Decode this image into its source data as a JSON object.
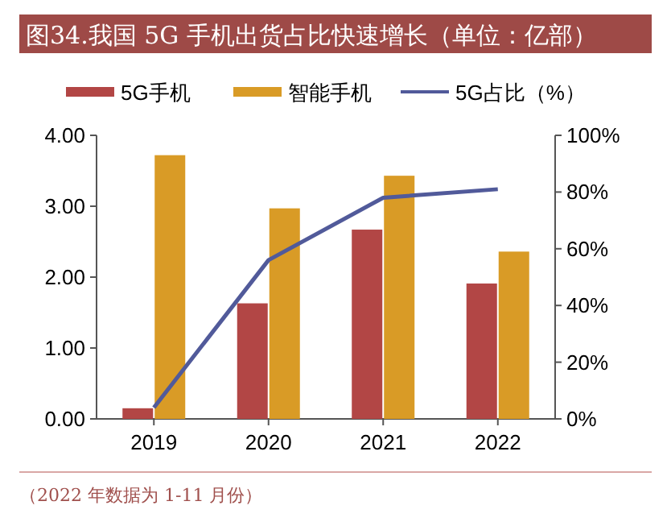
{
  "chart_data": {
    "type": "bar",
    "title": "图34.我国 5G 手机出货占比快速增长（单位：亿部）",
    "categories": [
      "2019",
      "2020",
      "2021",
      "2022"
    ],
    "series": [
      {
        "name": "5G手机",
        "color": "#b24645",
        "values": [
          0.15,
          1.63,
          2.67,
          1.91
        ]
      },
      {
        "name": "智能手机",
        "color": "#d99b26",
        "values": [
          3.72,
          2.97,
          3.43,
          2.36
        ]
      },
      {
        "name": "5G占比（%）",
        "type": "line",
        "axis": "y2",
        "color": "#515a9a",
        "values": [
          4,
          56,
          78,
          81
        ]
      }
    ],
    "ylim": [
      0,
      4
    ],
    "yticks": [
      {
        "value": 0,
        "label": "0.00"
      },
      {
        "value": 1,
        "label": "1.00"
      },
      {
        "value": 2,
        "label": "2.00"
      },
      {
        "value": 3,
        "label": "3.00"
      },
      {
        "value": 4,
        "label": "4.00"
      }
    ],
    "y2lim": [
      0,
      100
    ],
    "y2ticks": [
      {
        "value": 0,
        "label": "0%"
      },
      {
        "value": 20,
        "label": "20%"
      },
      {
        "value": 40,
        "label": "40%"
      },
      {
        "value": 60,
        "label": "60%"
      },
      {
        "value": 80,
        "label": "80%"
      },
      {
        "value": 100,
        "label": "100%"
      }
    ],
    "legend": "top",
    "grid": false,
    "annotations": [
      "（2022 年数据为 1-11 月份）"
    ]
  }
}
